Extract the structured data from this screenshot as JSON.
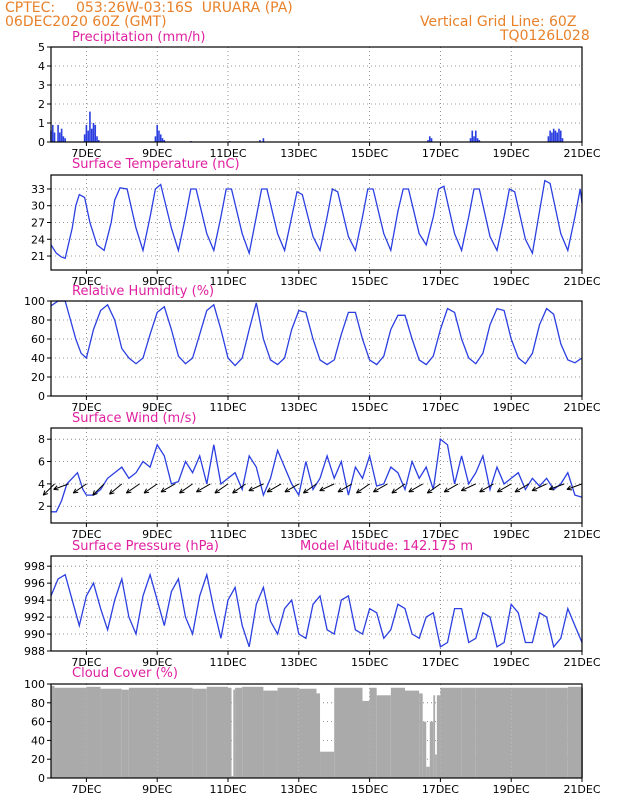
{
  "header": {
    "source": "CPTEC:",
    "location": "053:26W-03:16S  URUARA (PA)",
    "init_time": "06DEC2020 60Z (GMT)",
    "grid_note": "Vertical Grid Line: 60Z",
    "product_code": "TQ0126L028",
    "model_altitude": "Model Altitude: 142.175 m"
  },
  "colors": {
    "header": "#e8812a",
    "title": "#e020a0",
    "series": "#2b3fe0",
    "cloud": "#aaaaaa",
    "arrow": "#000000"
  },
  "x_axis": {
    "start_day": 6,
    "end_day": 21,
    "tick_labels": [
      "7DEC",
      "9DEC",
      "11DEC",
      "13DEC",
      "15DEC",
      "17DEC",
      "19DEC",
      "21DEC"
    ],
    "tick_days": [
      7,
      9,
      11,
      13,
      15,
      17,
      19,
      21
    ]
  },
  "chart_data": [
    {
      "id": "precipitation",
      "type": "bar",
      "title": "Precipitation (mm/h)",
      "ylim": [
        0,
        5
      ],
      "yticks": [
        0,
        1,
        2,
        3,
        4,
        5
      ],
      "grid": true,
      "x": [
        6.0,
        6.05,
        6.1,
        6.2,
        6.25,
        6.3,
        6.35,
        6.4,
        6.95,
        7.0,
        7.05,
        7.1,
        7.15,
        7.2,
        7.25,
        7.3,
        7.35,
        8.95,
        9.0,
        9.05,
        9.1,
        9.15,
        9.2,
        9.95,
        11.05,
        11.9,
        12.0,
        16.65,
        16.7,
        16.75,
        17.85,
        17.9,
        17.95,
        18.0,
        18.05,
        18.1,
        20.05,
        20.1,
        20.15,
        20.2,
        20.25,
        20.3,
        20.35,
        20.4,
        20.45
      ],
      "values": [
        0.6,
        0.9,
        0.5,
        0.9,
        0.5,
        0.7,
        0.3,
        0.2,
        0.4,
        0.9,
        0.6,
        1.6,
        0.7,
        1.0,
        0.9,
        0.3,
        0.1,
        0.3,
        0.9,
        0.6,
        0.4,
        0.2,
        0.1,
        0.05,
        0.05,
        0.1,
        0.2,
        0.1,
        0.3,
        0.2,
        0.2,
        0.6,
        0.3,
        0.6,
        0.2,
        0.1,
        0.3,
        0.6,
        0.5,
        0.7,
        0.6,
        0.5,
        0.7,
        0.6,
        0.2
      ]
    },
    {
      "id": "temperature",
      "type": "line",
      "title": "Surface Temperature (nC)",
      "ylim": [
        18.5,
        35.5
      ],
      "yticks": [
        21,
        24,
        27,
        30,
        33
      ],
      "grid": true,
      "x": [
        6.0,
        6.15,
        6.3,
        6.4,
        6.6,
        6.7,
        6.8,
        6.95,
        7.1,
        7.3,
        7.5,
        7.7,
        7.8,
        7.95,
        8.15,
        8.4,
        8.6,
        8.8,
        8.95,
        9.1,
        9.4,
        9.6,
        9.8,
        9.95,
        10.1,
        10.4,
        10.6,
        10.8,
        10.95,
        11.1,
        11.4,
        11.6,
        11.8,
        11.95,
        12.1,
        12.4,
        12.6,
        12.8,
        12.95,
        13.1,
        13.4,
        13.6,
        13.8,
        13.95,
        14.1,
        14.4,
        14.6,
        14.8,
        14.95,
        15.1,
        15.4,
        15.6,
        15.8,
        15.95,
        16.1,
        16.4,
        16.6,
        16.8,
        16.95,
        17.1,
        17.4,
        17.6,
        17.8,
        17.95,
        18.1,
        18.4,
        18.6,
        18.8,
        18.95,
        19.1,
        19.4,
        19.6,
        19.8,
        19.95,
        20.1,
        20.4,
        20.6,
        20.8,
        20.95,
        21.0
      ],
      "values": [
        23.0,
        21.5,
        20.8,
        20.6,
        26.0,
        30.0,
        32.0,
        31.5,
        27.0,
        23.0,
        22.0,
        27.0,
        31.0,
        33.2,
        33.0,
        26.0,
        22.0,
        28.0,
        33.0,
        33.8,
        26.0,
        22.0,
        28.0,
        33.0,
        33.0,
        25.0,
        22.0,
        28.0,
        33.0,
        33.0,
        25.0,
        21.5,
        28.0,
        33.0,
        33.0,
        25.0,
        22.0,
        28.0,
        32.5,
        32.0,
        24.5,
        22.0,
        28.0,
        33.0,
        32.5,
        24.5,
        22.0,
        28.0,
        33.0,
        33.0,
        25.0,
        22.0,
        29.0,
        33.0,
        33.0,
        25.0,
        23.0,
        28.0,
        33.0,
        33.5,
        25.0,
        22.0,
        28.0,
        33.0,
        33.0,
        24.5,
        22.0,
        28.0,
        33.0,
        32.5,
        24.0,
        21.5,
        29.0,
        34.5,
        34.0,
        25.0,
        22.0,
        28.0,
        33.0,
        30.5
      ]
    },
    {
      "id": "humidity",
      "type": "line",
      "title": "Relative Humidity (%)",
      "ylim": [
        0,
        100
      ],
      "yticks": [
        0,
        20,
        40,
        60,
        80,
        100
      ],
      "grid": true,
      "x": [
        6.0,
        6.2,
        6.4,
        6.55,
        6.7,
        6.85,
        7.0,
        7.2,
        7.4,
        7.6,
        7.8,
        8.0,
        8.2,
        8.4,
        8.6,
        8.8,
        9.0,
        9.2,
        9.4,
        9.6,
        9.8,
        10.0,
        10.2,
        10.4,
        10.6,
        10.8,
        11.0,
        11.2,
        11.4,
        11.6,
        11.8,
        12.0,
        12.2,
        12.4,
        12.6,
        12.8,
        13.0,
        13.2,
        13.4,
        13.6,
        13.8,
        14.0,
        14.2,
        14.4,
        14.6,
        14.8,
        15.0,
        15.2,
        15.4,
        15.6,
        15.8,
        16.0,
        16.2,
        16.4,
        16.6,
        16.8,
        17.0,
        17.2,
        17.4,
        17.6,
        17.8,
        18.0,
        18.2,
        18.4,
        18.6,
        18.8,
        19.0,
        19.2,
        19.4,
        19.6,
        19.8,
        20.0,
        20.2,
        20.4,
        20.6,
        20.8,
        21.0
      ],
      "values": [
        95,
        100,
        100,
        80,
        60,
        45,
        40,
        70,
        90,
        96,
        80,
        50,
        40,
        34,
        40,
        65,
        88,
        94,
        70,
        42,
        34,
        40,
        65,
        90,
        96,
        70,
        40,
        32,
        40,
        70,
        98,
        60,
        38,
        33,
        40,
        70,
        90,
        88,
        60,
        38,
        33,
        38,
        65,
        88,
        88,
        60,
        38,
        33,
        42,
        70,
        85,
        85,
        60,
        38,
        33,
        42,
        70,
        92,
        88,
        60,
        40,
        34,
        45,
        75,
        92,
        90,
        60,
        40,
        34,
        45,
        75,
        92,
        86,
        55,
        38,
        35,
        40
      ]
    },
    {
      "id": "wind",
      "type": "line",
      "title": "Surface Wind (m/s)",
      "ylim": [
        0.5,
        9.0
      ],
      "yticks": [
        2,
        4,
        6,
        8
      ],
      "grid": true,
      "x": [
        6.0,
        6.15,
        6.3,
        6.45,
        6.6,
        6.75,
        6.9,
        7.0,
        7.2,
        7.4,
        7.6,
        7.8,
        8.0,
        8.2,
        8.4,
        8.6,
        8.8,
        9.0,
        9.2,
        9.4,
        9.6,
        9.8,
        10.0,
        10.2,
        10.4,
        10.6,
        10.8,
        11.0,
        11.2,
        11.4,
        11.6,
        11.8,
        12.0,
        12.2,
        12.4,
        12.6,
        12.8,
        13.0,
        13.2,
        13.4,
        13.6,
        13.8,
        14.0,
        14.2,
        14.4,
        14.6,
        14.8,
        15.0,
        15.2,
        15.4,
        15.6,
        15.8,
        16.0,
        16.2,
        16.4,
        16.6,
        16.8,
        17.0,
        17.2,
        17.4,
        17.6,
        17.8,
        18.0,
        18.2,
        18.4,
        18.6,
        18.8,
        19.0,
        19.2,
        19.4,
        19.6,
        19.8,
        20.0,
        20.2,
        20.4,
        20.6,
        20.8,
        21.0
      ],
      "values": [
        1.5,
        1.5,
        2.5,
        4.0,
        4.5,
        5.0,
        3.5,
        3.0,
        3.0,
        3.5,
        4.5,
        5.0,
        5.5,
        4.5,
        5.0,
        6.0,
        5.5,
        7.5,
        6.5,
        4.0,
        4.2,
        6.0,
        5.0,
        6.5,
        4.0,
        7.5,
        4.0,
        4.5,
        5.0,
        3.5,
        6.5,
        5.5,
        3.0,
        4.5,
        7.0,
        5.5,
        4.0,
        3.0,
        6.0,
        3.5,
        4.5,
        6.5,
        4.5,
        6.0,
        3.0,
        5.5,
        4.5,
        6.5,
        3.8,
        4.0,
        5.5,
        5.0,
        3.5,
        6.0,
        4.5,
        5.5,
        3.5,
        8.0,
        7.5,
        4.0,
        6.5,
        4.0,
        5.0,
        6.5,
        3.5,
        5.5,
        4.0,
        4.5,
        5.0,
        3.5,
        4.5,
        3.8,
        4.5,
        3.5,
        4.0,
        5.0,
        3.0,
        2.8
      ]
    },
    {
      "id": "pressure",
      "type": "line",
      "title": "Surface Pressure (hPa)",
      "ylim": [
        988,
        999.2
      ],
      "yticks": [
        988,
        990,
        992,
        994,
        996,
        998
      ],
      "grid": true,
      "x": [
        6.0,
        6.2,
        6.4,
        6.6,
        6.8,
        7.0,
        7.2,
        7.4,
        7.6,
        7.8,
        8.0,
        8.2,
        8.4,
        8.6,
        8.8,
        9.0,
        9.2,
        9.4,
        9.6,
        9.8,
        10.0,
        10.2,
        10.4,
        10.6,
        10.8,
        11.0,
        11.2,
        11.4,
        11.6,
        11.8,
        12.0,
        12.2,
        12.4,
        12.6,
        12.8,
        13.0,
        13.2,
        13.4,
        13.6,
        13.8,
        14.0,
        14.2,
        14.4,
        14.6,
        14.8,
        15.0,
        15.2,
        15.4,
        15.6,
        15.8,
        16.0,
        16.2,
        16.4,
        16.6,
        16.8,
        17.0,
        17.2,
        17.4,
        17.6,
        17.8,
        18.0,
        18.2,
        18.4,
        18.6,
        18.8,
        19.0,
        19.2,
        19.4,
        19.6,
        19.8,
        20.0,
        20.2,
        20.4,
        20.6,
        20.8,
        21.0
      ],
      "values": [
        994.5,
        996.5,
        997.0,
        994.0,
        991.0,
        994.5,
        996.0,
        993.0,
        990.5,
        994.0,
        996.5,
        992.0,
        990.0,
        994.5,
        997.0,
        994.0,
        991.0,
        995.0,
        996.5,
        992.0,
        990.0,
        994.5,
        997.0,
        993.0,
        989.5,
        994.0,
        995.5,
        991.0,
        988.5,
        993.5,
        995.5,
        991.5,
        990.0,
        993.0,
        994.0,
        990.0,
        989.5,
        993.5,
        994.5,
        990.5,
        990.0,
        994.0,
        994.5,
        990.5,
        990.0,
        993.0,
        992.5,
        989.5,
        990.5,
        993.5,
        993.0,
        990.0,
        989.5,
        992.0,
        992.5,
        988.5,
        989.0,
        993.0,
        993.0,
        989.0,
        989.5,
        992.5,
        992.0,
        988.5,
        989.0,
        993.5,
        992.5,
        989.0,
        989.0,
        992.5,
        992.0,
        988.5,
        989.5,
        993.0,
        991.0,
        989.0
      ]
    },
    {
      "id": "cloud",
      "type": "bar",
      "title": "Cloud Cover (%)",
      "ylim": [
        0,
        100
      ],
      "yticks": [
        0,
        20,
        40,
        60,
        80,
        100
      ],
      "grid": true,
      "x": [
        6.0,
        6.1,
        7.0,
        7.4,
        8.0,
        8.2,
        9.0,
        10.0,
        10.4,
        11.0,
        11.1,
        11.15,
        11.2,
        11.4,
        12.0,
        12.4,
        13.0,
        13.5,
        13.6,
        14.0,
        14.8,
        15.0,
        15.2,
        15.6,
        16.0,
        16.4,
        16.5,
        16.6,
        16.7,
        16.8,
        16.85,
        16.9,
        17.0,
        17.6,
        18.0,
        19.0,
        20.0,
        20.6,
        21.0
      ],
      "values": [
        98,
        96,
        97,
        95,
        94,
        96,
        96,
        95,
        97,
        96,
        2,
        94,
        96,
        97,
        93,
        96,
        95,
        90,
        28,
        96,
        82,
        96,
        88,
        96,
        93,
        90,
        60,
        12,
        60,
        88,
        25,
        88,
        96,
        96,
        96,
        96,
        96,
        97,
        96
      ]
    }
  ],
  "wind_arrows": {
    "x": [
      6.1,
      6.5,
      7.0,
      7.5,
      8.0,
      8.5,
      9.0,
      9.5,
      10.0,
      10.5,
      11.0,
      11.5,
      12.0,
      12.5,
      13.0,
      13.5,
      14.0,
      14.5,
      15.0,
      15.5,
      16.0,
      16.5,
      17.0,
      17.5,
      18.0,
      18.5,
      19.0,
      19.5,
      20.0,
      20.5,
      21.0
    ],
    "dir_deg": [
      225,
      200,
      215,
      225,
      220,
      215,
      215,
      210,
      215,
      210,
      215,
      215,
      205,
      210,
      210,
      215,
      205,
      210,
      215,
      210,
      215,
      210,
      215,
      210,
      205,
      210,
      210,
      210,
      205,
      200,
      200
    ]
  }
}
